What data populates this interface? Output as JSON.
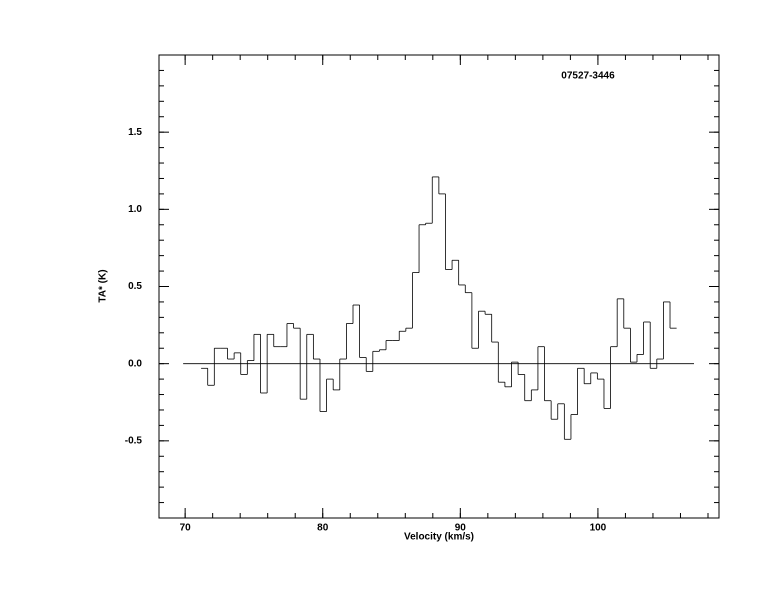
{
  "chart_data": {
    "type": "step",
    "title": "07527-3446",
    "xlabel": "Velocity (km/s)",
    "ylabel": "TA* (K)",
    "xlim": [
      68.1,
      108.8
    ],
    "ylim": [
      -1.0,
      2.0
    ],
    "xticks": [
      70,
      80,
      90,
      100
    ],
    "yticks": [
      {
        "value": -0.5,
        "label": "-0.5"
      },
      {
        "value": 0,
        "label": "0.0"
      },
      {
        "value": 0.5,
        "label": "0.5"
      },
      {
        "value": 1,
        "label": "1.0"
      },
      {
        "value": 1.5,
        "label": "1.5"
      }
    ],
    "color": "#000000",
    "x": [
      71.4,
      71.88,
      72.36,
      72.84,
      73.32,
      73.8,
      74.28,
      74.76,
      75.24,
      75.72,
      76.2,
      76.68,
      77.16,
      77.64,
      78.12,
      78.6,
      79.08,
      79.56,
      80.04,
      80.52,
      81.0,
      81.48,
      81.96,
      82.44,
      82.92,
      83.4,
      83.88,
      84.36,
      84.84,
      85.32,
      85.8,
      86.28,
      86.76,
      87.24,
      87.72,
      88.2,
      88.68,
      89.16,
      89.64,
      90.12,
      90.6,
      91.08,
      91.56,
      92.04,
      92.52,
      93.0,
      93.48,
      93.96,
      94.44,
      94.92,
      95.4,
      95.88,
      96.36,
      96.84,
      97.32,
      97.8,
      98.28,
      98.76,
      99.24,
      99.72,
      100.2,
      100.68,
      101.16,
      101.64,
      102.12,
      102.6,
      103.08,
      103.56,
      104.04,
      104.52,
      105.0,
      105.48
    ],
    "values": [
      -0.03,
      -0.14,
      0.1,
      0.1,
      0.03,
      0.07,
      -0.07,
      0.02,
      0.19,
      -0.19,
      0.19,
      0.11,
      0.11,
      0.26,
      0.23,
      -0.23,
      0.19,
      0.03,
      -0.31,
      -0.1,
      -0.17,
      0.03,
      0.26,
      0.38,
      0.04,
      -0.05,
      0.08,
      0.09,
      0.15,
      0.15,
      0.21,
      0.23,
      0.59,
      0.9,
      0.91,
      1.21,
      1.1,
      0.61,
      0.67,
      0.51,
      0.46,
      0.1,
      0.34,
      0.32,
      0.14,
      -0.12,
      -0.15,
      0.01,
      -0.07,
      -0.24,
      -0.17,
      0.11,
      -0.24,
      -0.36,
      -0.26,
      -0.49,
      -0.33,
      -0.03,
      -0.13,
      -0.06,
      -0.1,
      -0.29,
      0.11,
      0.42,
      0.23,
      0.01,
      0.06,
      0.27,
      -0.03,
      0.03,
      0.4,
      0.23
    ]
  }
}
